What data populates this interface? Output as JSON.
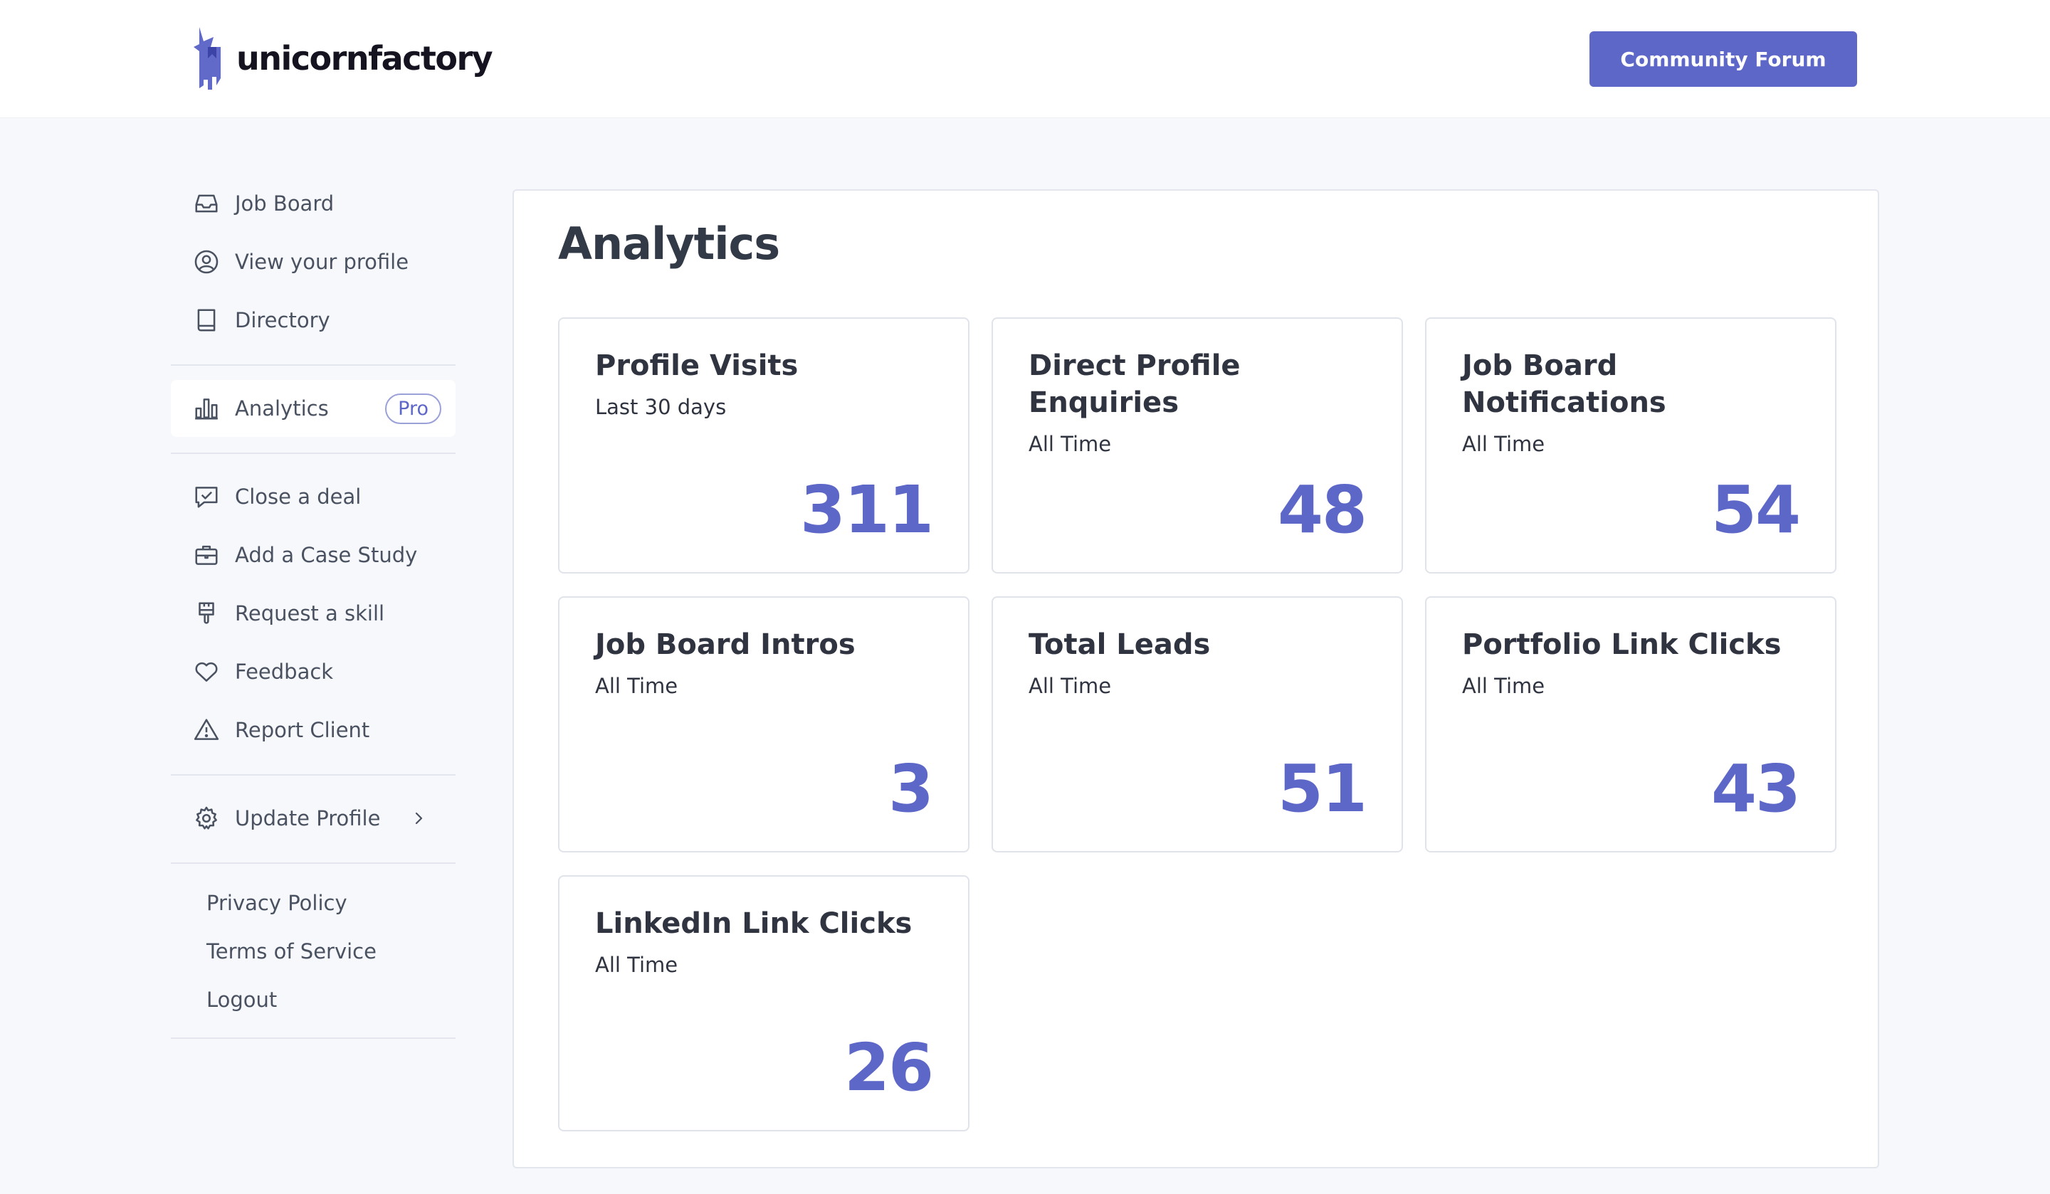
{
  "header": {
    "brand": "unicornfactory",
    "community_button": "Community Forum"
  },
  "colors": {
    "accent": "#5d67c8",
    "page_bg": "#f6f8fb",
    "text": "#374151"
  },
  "sidebar": {
    "items": [
      {
        "label": "Job Board",
        "icon": "inbox-icon"
      },
      {
        "label": "View your profile",
        "icon": "user-circle-icon"
      },
      {
        "label": "Directory",
        "icon": "book-icon"
      },
      {
        "label": "Analytics",
        "icon": "bar-chart-icon",
        "badge": "Pro",
        "active": true
      },
      {
        "label": "Close a deal",
        "icon": "chat-check-icon"
      },
      {
        "label": "Add a Case Study",
        "icon": "briefcase-icon"
      },
      {
        "label": "Request a skill",
        "icon": "brush-icon"
      },
      {
        "label": "Feedback",
        "icon": "heart-icon"
      },
      {
        "label": "Report Client",
        "icon": "warning-icon"
      },
      {
        "label": "Update Profile",
        "icon": "gear-icon",
        "chevron": "chevron-right-icon"
      }
    ],
    "footer_links": [
      "Privacy Policy",
      "Terms of Service",
      "Logout"
    ]
  },
  "main": {
    "title": "Analytics",
    "cards": [
      {
        "title": "Profile Visits",
        "period": "Last 30 days",
        "value": "311"
      },
      {
        "title": "Direct Profile Enquiries",
        "period": "All Time",
        "value": "48"
      },
      {
        "title": "Job Board Notifications",
        "period": "All Time",
        "value": "54"
      },
      {
        "title": "Job Board Intros",
        "period": "All Time",
        "value": "3"
      },
      {
        "title": "Total Leads",
        "period": "All Time",
        "value": "51"
      },
      {
        "title": "Portfolio Link Clicks",
        "period": "All Time",
        "value": "43"
      },
      {
        "title": "LinkedIn Link Clicks",
        "period": "All Time",
        "value": "26"
      }
    ]
  }
}
